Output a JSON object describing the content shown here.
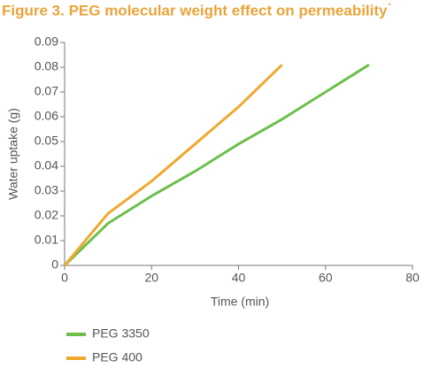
{
  "chart_data": {
    "type": "line",
    "title": "Figure 3. PEG molecular weight effect on permeability",
    "title_mark": "*",
    "x_label": "Time (min)",
    "y_label": "Water uptake (g)",
    "xlim": [
      0,
      80
    ],
    "xticks": [
      0,
      20,
      40,
      60,
      80
    ],
    "ylim": [
      0,
      0.09
    ],
    "yticks": [
      0,
      0.01,
      0.02,
      0.03,
      0.04,
      0.05,
      0.06,
      0.07,
      0.08,
      0.09
    ],
    "series": [
      {
        "name": "PEG 3350",
        "color": "#6cc04a",
        "x": [
          0,
          10,
          20,
          30,
          40,
          50,
          60,
          70
        ],
        "values": [
          0,
          0.017,
          0.028,
          0.038,
          0.049,
          0.059,
          0.07,
          0.081
        ]
      },
      {
        "name": "PEG 400",
        "color": "#f0a830",
        "x": [
          0,
          10,
          20,
          30,
          40,
          50
        ],
        "values": [
          0,
          0.021,
          0.034,
          0.049,
          0.064,
          0.081
        ]
      }
    ]
  }
}
